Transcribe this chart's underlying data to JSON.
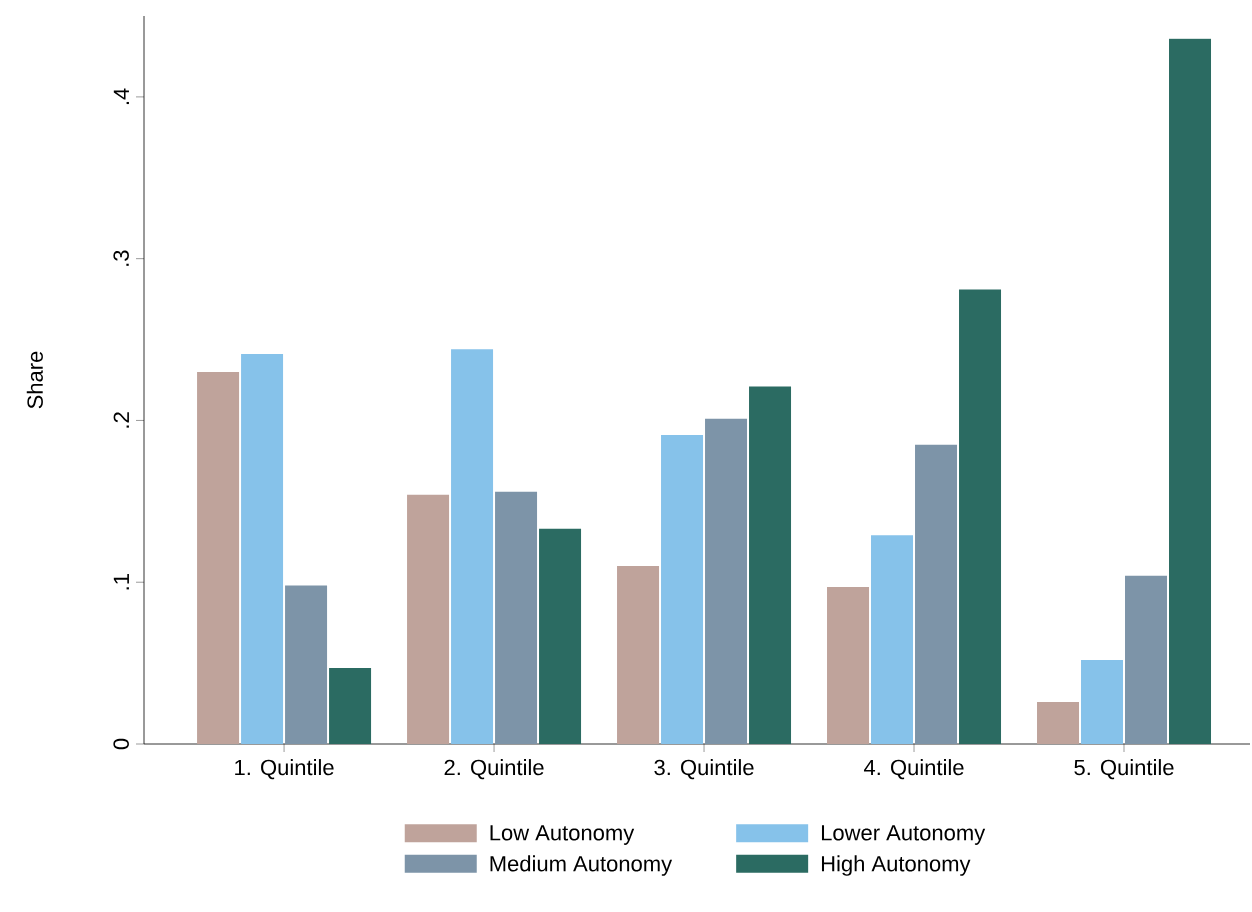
{
  "chart_data": {
    "type": "bar",
    "ylabel": "Share",
    "categories": [
      "1. Quintile",
      "2. Quintile",
      "3. Quintile",
      "4. Quintile",
      "5. Quintile"
    ],
    "series": [
      {
        "name": "Low Autonomy",
        "color": "#bfa39b",
        "values": [
          0.23,
          0.154,
          0.11,
          0.097,
          0.026
        ]
      },
      {
        "name": "Lower Autonomy",
        "color": "#86c2ea",
        "values": [
          0.241,
          0.244,
          0.191,
          0.129,
          0.052
        ]
      },
      {
        "name": "Medium Autonomy",
        "color": "#7d94a8",
        "values": [
          0.098,
          0.156,
          0.201,
          0.185,
          0.104
        ]
      },
      {
        "name": "High Autonomy",
        "color": "#2b6b62",
        "values": [
          0.047,
          0.133,
          0.221,
          0.281,
          0.436
        ]
      }
    ],
    "ylim": [
      0,
      0.45
    ],
    "yticks": [
      0,
      {
        "value": 0.1,
        "label": ".1"
      },
      {
        "value": 0.2,
        "label": ".2"
      },
      {
        "value": 0.3,
        "label": ".3"
      },
      {
        "value": 0.4,
        "label": ".4"
      }
    ],
    "grid": false,
    "legend": "bottom"
  }
}
